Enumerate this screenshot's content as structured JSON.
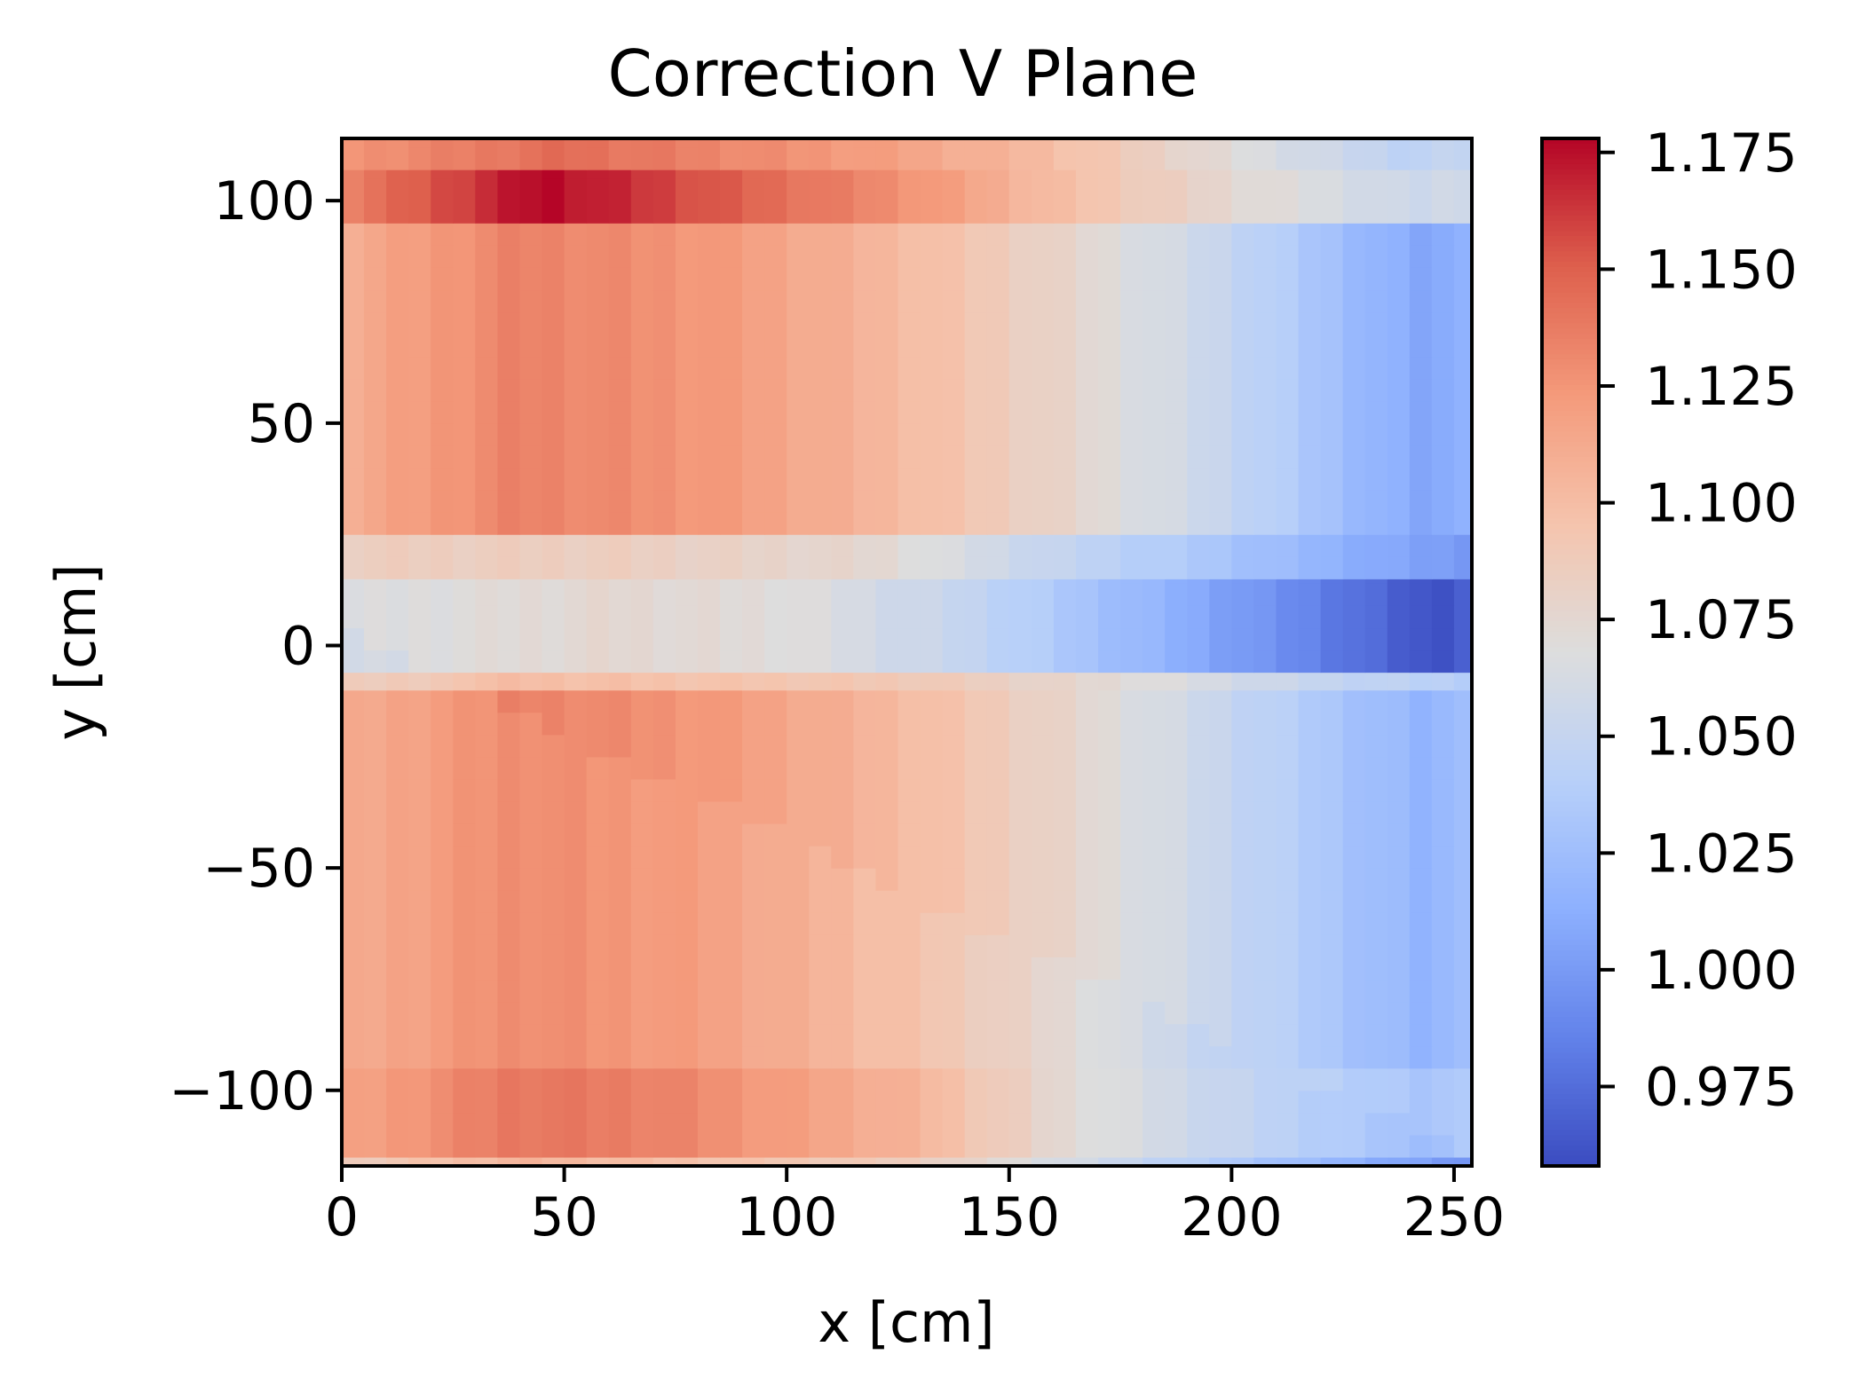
{
  "chart_data": {
    "type": "heatmap",
    "title": "Correction V Plane",
    "xlabel": "x [cm]",
    "ylabel": "y [cm]",
    "xlim": [
      0,
      254
    ],
    "ylim": [
      -117,
      114
    ],
    "x_ticks": [
      0,
      50,
      100,
      150,
      200,
      250
    ],
    "x_tick_labels": [
      "0",
      "50",
      "100",
      "150",
      "200",
      "250"
    ],
    "y_ticks": [
      100,
      50,
      0,
      -50,
      -100
    ],
    "y_tick_labels": [
      "100",
      "50",
      "0",
      "−50",
      "−100"
    ],
    "colormap": "coolwarm",
    "colorbar": {
      "min": 0.958,
      "max": 1.178,
      "ticks": [
        1.175,
        1.15,
        1.125,
        1.1,
        1.075,
        1.05,
        1.025,
        1.0,
        0.975
      ],
      "tick_labels": [
        "1.175",
        "1.150",
        "1.125",
        "1.100",
        "1.075",
        "1.050",
        "1.025",
        "1.000",
        "0.975"
      ]
    },
    "cell_size_cm": 5,
    "x_column_centers_cm": [
      2.5,
      7.5,
      12.5,
      17.5,
      22.5,
      27.5,
      32.5,
      37.5,
      42.5,
      47.5,
      52.5,
      57.5,
      62.5,
      67.5,
      72.5,
      77.5,
      82.5,
      87.5,
      92.5,
      97.5,
      102.5,
      107.5,
      112.5,
      117.5,
      122.5,
      127.5,
      132.5,
      137.5,
      142.5,
      147.5,
      152.5,
      157.5,
      162.5,
      167.5,
      172.5,
      177.5,
      182.5,
      187.5,
      192.5,
      197.5,
      202.5,
      207.5,
      212.5,
      217.5,
      222.5,
      227.5,
      232.5,
      237.5,
      242.5,
      247.5,
      252.5
    ],
    "y_bands": [
      {
        "y_range": [
          -117,
          -115
        ],
        "profile": [
          [
            0,
            1.09
          ],
          [
            40,
            1.11
          ],
          [
            130,
            1.09
          ],
          [
            200,
            1.04
          ],
          [
            254,
            1.0
          ]
        ]
      },
      {
        "y_range": [
          -115,
          -95
        ],
        "profile": [
          [
            0,
            1.12
          ],
          [
            40,
            1.145
          ],
          [
            70,
            1.14
          ],
          [
            130,
            1.11
          ],
          [
            160,
            1.08
          ],
          [
            200,
            1.055
          ],
          [
            245,
            1.03
          ],
          [
            254,
            1.04
          ]
        ]
      },
      {
        "y_range": [
          -95,
          -10
        ],
        "profile": [
          [
            0,
            1.115
          ],
          [
            40,
            1.135
          ],
          [
            80,
            1.125
          ],
          [
            130,
            1.1
          ],
          [
            160,
            1.08
          ],
          [
            200,
            1.05
          ],
          [
            245,
            1.015
          ],
          [
            254,
            1.03
          ]
        ]
      },
      {
        "y_range": [
          -10,
          -6
        ],
        "profile": [
          [
            0,
            1.09
          ],
          [
            40,
            1.1
          ],
          [
            130,
            1.09
          ],
          [
            180,
            1.07
          ],
          [
            220,
            1.05
          ],
          [
            254,
            1.04
          ]
        ]
      },
      {
        "y_range": [
          -6,
          15
        ],
        "profile": [
          [
            0,
            1.065
          ],
          [
            60,
            1.075
          ],
          [
            100,
            1.07
          ],
          [
            140,
            1.05
          ],
          [
            180,
            1.02
          ],
          [
            220,
            0.985
          ],
          [
            245,
            0.96
          ],
          [
            254,
            0.97
          ]
        ]
      },
      {
        "y_range": [
          15,
          25
        ],
        "profile": [
          [
            0,
            1.085
          ],
          [
            60,
            1.085
          ],
          [
            120,
            1.075
          ],
          [
            160,
            1.05
          ],
          [
            200,
            1.03
          ],
          [
            240,
            1.005
          ],
          [
            254,
            1.0
          ]
        ]
      },
      {
        "y_range": [
          25,
          95
        ],
        "profile": [
          [
            0,
            1.11
          ],
          [
            40,
            1.135
          ],
          [
            80,
            1.125
          ],
          [
            130,
            1.1
          ],
          [
            160,
            1.08
          ],
          [
            200,
            1.05
          ],
          [
            245,
            1.005
          ],
          [
            254,
            1.02
          ]
        ]
      },
      {
        "y_range": [
          95,
          107
        ],
        "profile": [
          [
            0,
            1.135
          ],
          [
            45,
            1.178
          ],
          [
            80,
            1.155
          ],
          [
            130,
            1.125
          ],
          [
            160,
            1.1
          ],
          [
            200,
            1.075
          ],
          [
            240,
            1.055
          ],
          [
            254,
            1.06
          ]
        ]
      },
      {
        "y_range": [
          107,
          114
        ],
        "profile": [
          [
            0,
            1.125
          ],
          [
            50,
            1.145
          ],
          [
            120,
            1.12
          ],
          [
            160,
            1.1
          ],
          [
            200,
            1.07
          ],
          [
            240,
            1.045
          ],
          [
            254,
            1.05
          ]
        ]
      }
    ]
  }
}
